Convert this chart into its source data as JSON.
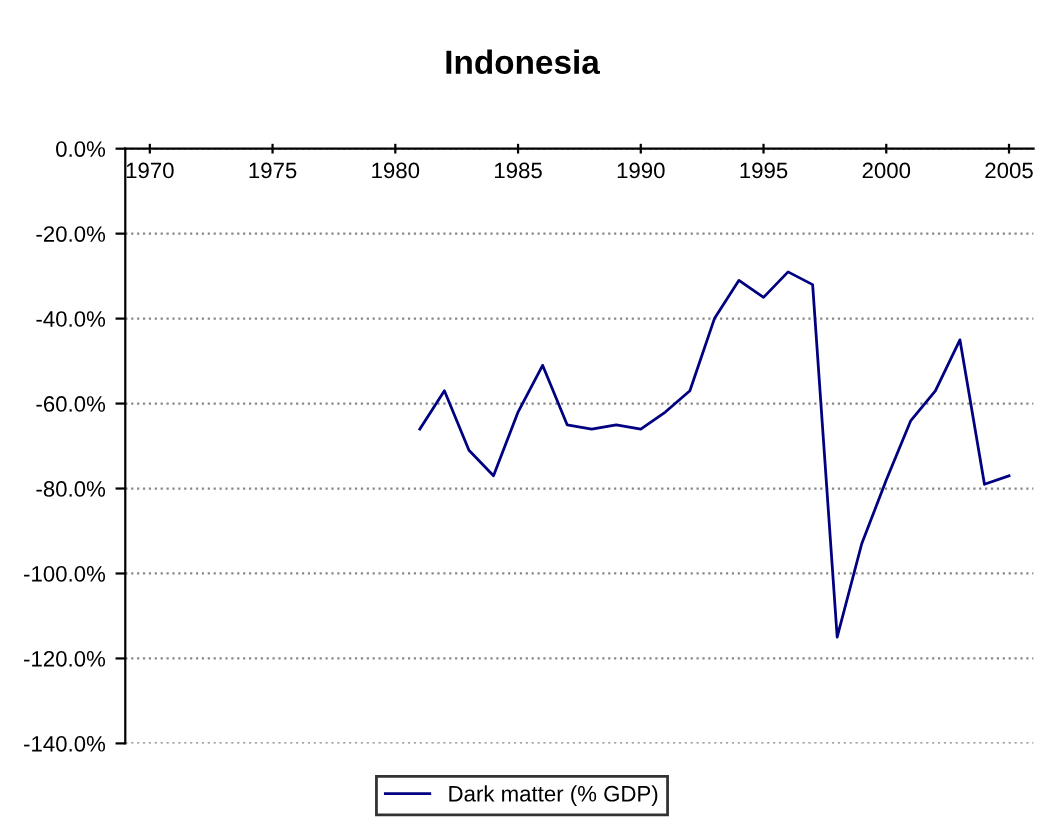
{
  "chart_data": {
    "type": "line",
    "title": "Indonesia",
    "x": [
      1981,
      1982,
      1983,
      1984,
      1985,
      1986,
      1987,
      1988,
      1989,
      1990,
      1991,
      1992,
      1993,
      1994,
      1995,
      1996,
      1997,
      1998,
      1999,
      2000,
      2001,
      2002,
      2003,
      2004,
      2005
    ],
    "series": [
      {
        "name": "Dark matter (% GDP)",
        "color": "#000080",
        "values": [
          -66,
          -57,
          -71,
          -77,
          -62,
          -51,
          -65,
          -66,
          -65,
          -66,
          -62,
          -57,
          -40,
          -31,
          -35,
          -29,
          -32,
          -115,
          -93,
          -78,
          -64,
          -57,
          -45,
          -79,
          -77
        ]
      }
    ],
    "xlim": [
      1969,
      2006
    ],
    "xticks": [
      1970,
      1975,
      1980,
      1985,
      1990,
      1995,
      2000,
      2005
    ],
    "ylim": [
      -140,
      0
    ],
    "yticks": [
      {
        "value": 0,
        "label": "0.0%"
      },
      {
        "value": -20,
        "label": "-20.0%"
      },
      {
        "value": -40,
        "label": "-40.0%"
      },
      {
        "value": -60,
        "label": "-60.0%"
      },
      {
        "value": -80,
        "label": "-80.0%"
      },
      {
        "value": -100,
        "label": "-100.0%"
      },
      {
        "value": -120,
        "label": "-120.0%"
      },
      {
        "value": -140,
        "label": "-140.0%"
      }
    ],
    "grid": "y",
    "legend": "bottom",
    "marker": "none",
    "line_style": "solid"
  }
}
